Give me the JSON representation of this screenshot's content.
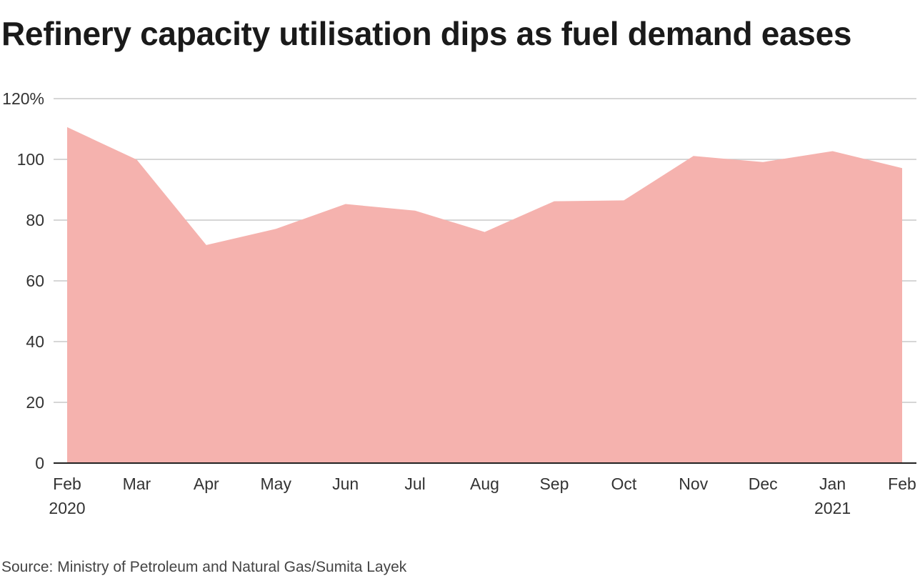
{
  "title": "Refinery capacity utilisation dips as fuel demand eases",
  "source": "Source: Ministry of Petroleum and Natural Gas/Sumita Layek",
  "chart_data": {
    "type": "area",
    "title": "Refinery capacity utilisation dips as fuel demand eases",
    "x": [
      "Feb 2020",
      "Mar 2020",
      "Apr 2020",
      "May 2020",
      "Jun 2020",
      "Jul 2020",
      "Aug 2020",
      "Sep 2020",
      "Oct 2020",
      "Nov 2020",
      "Dec 2020",
      "Jan 2021",
      "Feb 2021"
    ],
    "x_tick_labels": [
      {
        "month": "Feb",
        "year": "2020"
      },
      {
        "month": "Mar",
        "year": ""
      },
      {
        "month": "Apr",
        "year": ""
      },
      {
        "month": "May",
        "year": ""
      },
      {
        "month": "Jun",
        "year": ""
      },
      {
        "month": "Jul",
        "year": ""
      },
      {
        "month": "Aug",
        "year": ""
      },
      {
        "month": "Sep",
        "year": ""
      },
      {
        "month": "Oct",
        "year": ""
      },
      {
        "month": "Nov",
        "year": ""
      },
      {
        "month": "Dec",
        "year": ""
      },
      {
        "month": "Jan",
        "year": "2021"
      },
      {
        "month": "Feb",
        "year": ""
      }
    ],
    "series": [
      {
        "values": [
          110.6,
          99.9,
          71.8,
          77.1,
          85.3,
          83.1,
          76.1,
          86.2,
          86.5,
          101.1,
          99.1,
          102.7,
          97.1
        ]
      }
    ],
    "ylim": [
      0,
      120
    ],
    "y_ticks": [
      0,
      20,
      40,
      60,
      80,
      100,
      120
    ],
    "y_tick_labels": [
      "0",
      "20",
      "40",
      "60",
      "80",
      "100",
      "120%"
    ],
    "xlabel": "",
    "ylabel": "",
    "grid": true,
    "colors": {
      "area": "#f5b2ae",
      "grid": "#c8c8c8",
      "axis": "#222222"
    }
  }
}
